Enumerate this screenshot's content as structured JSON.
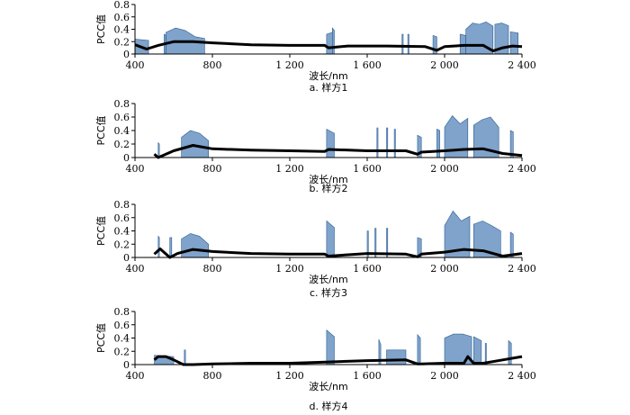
{
  "chart_data": [
    {
      "type": "area",
      "caption": "a.  样方1",
      "xlabel": "波长/nm",
      "ylabel": "PCC值",
      "xlim": [
        400,
        2400
      ],
      "ylim": [
        0,
        0.8
      ],
      "xticks": [
        400,
        800,
        1200,
        1600,
        2000,
        2400
      ],
      "xtick_labels": [
        "400",
        "800",
        "1 200",
        "1 600",
        "2 000",
        "2 400"
      ],
      "yticks": [
        0,
        0.2,
        0.4,
        0.6,
        0.8
      ],
      "ytick_labels": [
        "0",
        "0.2",
        "0.4",
        "0.6",
        "0.8"
      ],
      "bands": [
        {
          "x0": 400,
          "x1": 470,
          "top": [
            0.24,
            0.22
          ]
        },
        {
          "x0": 550,
          "x1": 560,
          "top": [
            0.32,
            0.3
          ]
        },
        {
          "x0": 560,
          "x1": 760,
          "top": [
            0.35,
            0.42,
            0.38,
            0.28,
            0.25
          ]
        },
        {
          "x0": 1390,
          "x1": 1420,
          "top": [
            0.32,
            0.35
          ]
        },
        {
          "x0": 1420,
          "x1": 1430,
          "top": [
            0.42,
            0.38
          ]
        },
        {
          "x0": 1780,
          "x1": 1786,
          "top": [
            0.32,
            0.32
          ]
        },
        {
          "x0": 1810,
          "x1": 1816,
          "top": [
            0.32,
            0.32
          ]
        },
        {
          "x0": 1940,
          "x1": 1960,
          "top": [
            0.3,
            0.28
          ]
        },
        {
          "x0": 2080,
          "x1": 2110,
          "top": [
            0.32,
            0.3
          ]
        },
        {
          "x0": 2110,
          "x1": 2250,
          "top": [
            0.4,
            0.5,
            0.48,
            0.52,
            0.45
          ]
        },
        {
          "x0": 2260,
          "x1": 2330,
          "top": [
            0.48,
            0.5,
            0.46
          ]
        },
        {
          "x0": 2340,
          "x1": 2380,
          "top": [
            0.36,
            0.34
          ]
        }
      ],
      "line": {
        "x": [
          400,
          460,
          520,
          600,
          700,
          800,
          1000,
          1200,
          1380,
          1400,
          1500,
          1700,
          1900,
          1960,
          2000,
          2100,
          2200,
          2250,
          2300,
          2350,
          2400
        ],
        "y": [
          0.15,
          0.08,
          0.14,
          0.2,
          0.2,
          0.18,
          0.15,
          0.14,
          0.14,
          0.1,
          0.13,
          0.13,
          0.12,
          0.06,
          0.12,
          0.14,
          0.14,
          0.05,
          0.1,
          0.13,
          0.12
        ]
      }
    },
    {
      "type": "area",
      "caption": "b.  样方2",
      "xlabel": "波长/nm",
      "ylabel": "PCC值",
      "xlim": [
        400,
        2400
      ],
      "ylim": [
        0,
        0.8
      ],
      "xticks": [
        400,
        800,
        1200,
        1600,
        2000,
        2400
      ],
      "xtick_labels": [
        "400",
        "800",
        "1 200",
        "1 600",
        "2 000",
        "2 400"
      ],
      "yticks": [
        0,
        0.2,
        0.4,
        0.6,
        0.8
      ],
      "ytick_labels": [
        "0",
        "0.2",
        "0.4",
        "0.6",
        "0.8"
      ],
      "bands": [
        {
          "x0": 520,
          "x1": 526,
          "top": [
            0.22,
            0.2
          ]
        },
        {
          "x0": 640,
          "x1": 780,
          "top": [
            0.3,
            0.4,
            0.36,
            0.25
          ]
        },
        {
          "x0": 1390,
          "x1": 1430,
          "top": [
            0.42,
            0.36
          ]
        },
        {
          "x0": 1650,
          "x1": 1656,
          "top": [
            0.44,
            0.44
          ]
        },
        {
          "x0": 1700,
          "x1": 1706,
          "top": [
            0.44,
            0.44
          ]
        },
        {
          "x0": 1740,
          "x1": 1746,
          "top": [
            0.42,
            0.42
          ]
        },
        {
          "x0": 1860,
          "x1": 1880,
          "top": [
            0.33,
            0.3
          ]
        },
        {
          "x0": 1960,
          "x1": 1975,
          "top": [
            0.42,
            0.4
          ]
        },
        {
          "x0": 2000,
          "x1": 2120,
          "top": [
            0.45,
            0.62,
            0.5,
            0.58
          ]
        },
        {
          "x0": 2150,
          "x1": 2280,
          "top": [
            0.48,
            0.56,
            0.6,
            0.45
          ]
        },
        {
          "x0": 2340,
          "x1": 2355,
          "top": [
            0.4,
            0.38
          ]
        }
      ],
      "line": {
        "x": [
          500,
          520,
          560,
          600,
          700,
          800,
          1000,
          1200,
          1380,
          1400,
          1600,
          1800,
          1860,
          1880,
          2000,
          2100,
          2200,
          2300,
          2400
        ],
        "y": [
          0.05,
          0.0,
          0.05,
          0.1,
          0.18,
          0.13,
          0.11,
          0.1,
          0.09,
          0.12,
          0.1,
          0.1,
          0.05,
          0.08,
          0.1,
          0.12,
          0.13,
          0.06,
          0.03
        ]
      }
    },
    {
      "type": "area",
      "caption": "c.  样方3",
      "xlabel": "波长/nm",
      "ylabel": "PCC值",
      "xlim": [
        400,
        2400
      ],
      "ylim": [
        0,
        0.8
      ],
      "xticks": [
        400,
        800,
        1200,
        1600,
        2000,
        2400
      ],
      "xtick_labels": [
        "400",
        "800",
        "1 200",
        "1 600",
        "2 000",
        "2 400"
      ],
      "yticks": [
        0,
        0.2,
        0.4,
        0.6,
        0.8
      ],
      "ytick_labels": [
        "0",
        "0.2",
        "0.4",
        "0.6",
        "0.8"
      ],
      "bands": [
        {
          "x0": 520,
          "x1": 526,
          "top": [
            0.32,
            0.3
          ]
        },
        {
          "x0": 580,
          "x1": 590,
          "top": [
            0.3,
            0.3
          ]
        },
        {
          "x0": 640,
          "x1": 780,
          "top": [
            0.28,
            0.36,
            0.32,
            0.2
          ]
        },
        {
          "x0": 1390,
          "x1": 1430,
          "top": [
            0.55,
            0.45
          ]
        },
        {
          "x0": 1600,
          "x1": 1606,
          "top": [
            0.4,
            0.4
          ]
        },
        {
          "x0": 1640,
          "x1": 1646,
          "top": [
            0.44,
            0.44
          ]
        },
        {
          "x0": 1700,
          "x1": 1706,
          "top": [
            0.44,
            0.44
          ]
        },
        {
          "x0": 1860,
          "x1": 1880,
          "top": [
            0.3,
            0.28
          ]
        },
        {
          "x0": 2000,
          "x1": 2130,
          "top": [
            0.48,
            0.7,
            0.55,
            0.62
          ]
        },
        {
          "x0": 2150,
          "x1": 2290,
          "top": [
            0.5,
            0.55,
            0.48,
            0.4
          ]
        },
        {
          "x0": 2340,
          "x1": 2355,
          "top": [
            0.38,
            0.35
          ]
        }
      ],
      "line": {
        "x": [
          500,
          530,
          580,
          620,
          700,
          800,
          1000,
          1200,
          1380,
          1400,
          1600,
          1800,
          1860,
          1880,
          2000,
          2100,
          2200,
          2300,
          2400
        ],
        "y": [
          0.05,
          0.13,
          0.0,
          0.06,
          0.12,
          0.09,
          0.06,
          0.05,
          0.05,
          0.02,
          0.06,
          0.05,
          0.01,
          0.05,
          0.08,
          0.12,
          0.1,
          0.02,
          0.06
        ]
      }
    },
    {
      "type": "area",
      "caption": "d.  样方4",
      "xlabel": "波长/nm",
      "ylabel": "PCC值",
      "xlim": [
        400,
        2400
      ],
      "ylim": [
        0,
        0.8
      ],
      "xticks": [
        400,
        800,
        1200,
        1600,
        2000,
        2400
      ],
      "xtick_labels": [
        "400",
        "800",
        "1 200",
        "1 600",
        "2 000",
        "2 400"
      ],
      "yticks": [
        0,
        0.2,
        0.4,
        0.6,
        0.8
      ],
      "ytick_labels": [
        "0",
        "0.2",
        "0.4",
        "0.6",
        "0.8"
      ],
      "bands": [
        {
          "x0": 500,
          "x1": 600,
          "top": [
            0.14,
            0.12
          ]
        },
        {
          "x0": 655,
          "x1": 661,
          "top": [
            0.22,
            0.22
          ]
        },
        {
          "x0": 1390,
          "x1": 1430,
          "top": [
            0.52,
            0.42
          ]
        },
        {
          "x0": 1660,
          "x1": 1670,
          "top": [
            0.38,
            0.3
          ]
        },
        {
          "x0": 1700,
          "x1": 1800,
          "top": [
            0.22,
            0.22
          ]
        },
        {
          "x0": 1860,
          "x1": 1875,
          "top": [
            0.45,
            0.4
          ]
        },
        {
          "x0": 2000,
          "x1": 2140,
          "top": [
            0.4,
            0.46,
            0.46,
            0.42
          ]
        },
        {
          "x0": 2150,
          "x1": 2190,
          "top": [
            0.42,
            0.36
          ]
        },
        {
          "x0": 2210,
          "x1": 2216,
          "top": [
            0.32,
            0.32
          ]
        },
        {
          "x0": 2330,
          "x1": 2345,
          "top": [
            0.36,
            0.32
          ]
        }
      ],
      "line": {
        "x": [
          500,
          520,
          560,
          600,
          650,
          700,
          800,
          1000,
          1200,
          1400,
          1600,
          1800,
          1860,
          1880,
          2000,
          2100,
          2120,
          2150,
          2200,
          2300,
          2400
        ],
        "y": [
          0.07,
          0.12,
          0.12,
          0.07,
          0.0,
          0.0,
          0.01,
          0.02,
          0.02,
          0.04,
          0.06,
          0.07,
          0.01,
          0.01,
          0.02,
          0.02,
          0.12,
          0.02,
          0.02,
          0.07,
          0.12
        ]
      }
    }
  ]
}
